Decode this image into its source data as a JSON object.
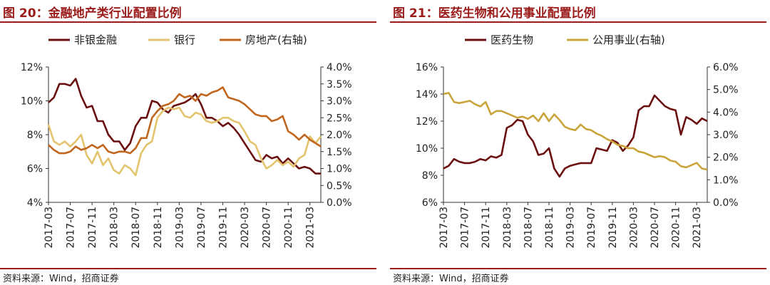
{
  "chart_data": [
    {
      "type": "line",
      "title": "图 20：金融地产类行业配置比例",
      "source": "资料来源：Wind，招商证券",
      "x_tick_labels": [
        "2017-03",
        "2017-07",
        "2017-11",
        "2018-03",
        "2018-07",
        "2018-11",
        "2019-03",
        "2019-07",
        "2019-11",
        "2020-03",
        "2020-07",
        "2020-11",
        "2021-03"
      ],
      "x_range": [
        0,
        50
      ],
      "y_left": {
        "ticks": [
          "4%",
          "6%",
          "8%",
          "10%",
          "12%"
        ],
        "range": [
          4,
          12
        ]
      },
      "y_right": {
        "ticks": [
          "0.0%",
          "0.5%",
          "1.0%",
          "1.5%",
          "2.0%",
          "2.5%",
          "3.0%",
          "3.5%",
          "4.0%"
        ],
        "range": [
          0,
          4
        ]
      },
      "legend_position": "top",
      "series": [
        {
          "name": "非银金融",
          "axis": "left",
          "color": "#6b1010",
          "values": [
            9.9,
            10.2,
            11.0,
            11.0,
            10.9,
            11.3,
            10.3,
            9.6,
            9.7,
            8.8,
            8.8,
            8.0,
            7.6,
            7.6,
            7.1,
            7.5,
            8.5,
            9.0,
            9.0,
            10.0,
            9.9,
            9.5,
            9.3,
            9.7,
            9.8,
            9.9,
            10.1,
            10.4,
            9.8,
            9.0,
            9.0,
            8.8,
            8.5,
            8.7,
            8.4,
            8.0,
            7.5,
            7.0,
            6.5,
            6.4,
            6.8,
            6.6,
            6.7,
            6.3,
            6.6,
            6.3,
            6.0,
            6.1,
            6.0,
            5.7,
            5.7
          ]
        },
        {
          "name": "银行",
          "axis": "left",
          "color": "#e3c46c",
          "values": [
            8.6,
            7.6,
            7.4,
            7.6,
            7.3,
            7.6,
            8.0,
            6.8,
            6.3,
            7.0,
            6.2,
            6.6,
            5.9,
            5.7,
            6.2,
            6.0,
            5.6,
            6.9,
            7.4,
            7.6,
            9.0,
            9.4,
            9.6,
            9.5,
            9.6,
            9.1,
            9.0,
            9.3,
            9.2,
            8.8,
            8.7,
            8.8,
            9.0,
            9.0,
            8.8,
            8.7,
            8.2,
            7.6,
            7.4,
            6.6,
            6.0,
            6.2,
            6.5,
            6.2,
            6.4,
            6.1,
            6.6,
            6.8,
            7.9,
            7.5,
            7.9
          ]
        },
        {
          "name": "房地产(右轴)",
          "axis": "right",
          "color": "#c0661e",
          "values": [
            1.7,
            1.55,
            1.45,
            1.45,
            1.5,
            1.65,
            1.55,
            1.6,
            1.7,
            1.6,
            1.7,
            1.5,
            1.45,
            1.5,
            1.5,
            1.45,
            1.6,
            1.9,
            1.9,
            2.5,
            2.7,
            2.85,
            2.9,
            3.0,
            3.2,
            3.1,
            3.15,
            3.0,
            3.2,
            3.15,
            3.25,
            3.3,
            3.4,
            3.1,
            3.05,
            3.0,
            2.9,
            2.75,
            2.6,
            2.55,
            2.55,
            2.4,
            2.45,
            2.55,
            2.1,
            2.0,
            1.85,
            2.0,
            1.85,
            1.75,
            1.65
          ]
        }
      ]
    },
    {
      "type": "line",
      "title": "图 21：医药生物和公用事业配置比例",
      "source": "资料来源：Wind，招商证券",
      "x_tick_labels": [
        "2017-03",
        "2017-07",
        "2017-11",
        "2018-03",
        "2018-07",
        "2018-11",
        "2019-03",
        "2019-07",
        "2019-11",
        "2020-03",
        "2020-07",
        "2020-11",
        "2021-03"
      ],
      "x_range": [
        0,
        50
      ],
      "y_left": {
        "ticks": [
          "6%",
          "8%",
          "10%",
          "12%",
          "14%",
          "16%"
        ],
        "range": [
          6,
          16
        ]
      },
      "y_right": {
        "ticks": [
          "0.0%",
          "1.0%",
          "2.0%",
          "3.0%",
          "4.0%",
          "5.0%",
          "6.0%"
        ],
        "range": [
          0,
          6
        ]
      },
      "legend_position": "top",
      "series": [
        {
          "name": "医药生物",
          "axis": "left",
          "color": "#6b1010",
          "values": [
            8.5,
            8.7,
            9.2,
            9.0,
            8.9,
            8.9,
            9.0,
            9.2,
            9.1,
            9.4,
            9.3,
            9.5,
            11.5,
            11.7,
            12.1,
            12.0,
            11.0,
            10.5,
            9.5,
            9.6,
            10.0,
            8.5,
            7.9,
            8.5,
            8.7,
            8.8,
            8.9,
            8.9,
            8.9,
            10.0,
            9.9,
            9.8,
            10.6,
            10.4,
            9.8,
            10.2,
            10.8,
            12.8,
            13.1,
            13.1,
            13.9,
            13.5,
            13.1,
            12.9,
            12.8,
            11.0,
            12.3,
            12.1,
            11.8,
            12.2,
            12.0
          ]
        },
        {
          "name": "公用事业(右轴)",
          "axis": "right",
          "color": "#c9a43a",
          "values": [
            4.8,
            4.85,
            4.45,
            4.4,
            4.45,
            4.5,
            4.35,
            4.25,
            4.45,
            3.9,
            4.05,
            4.05,
            3.95,
            3.85,
            3.75,
            3.8,
            3.7,
            3.85,
            3.6,
            3.95,
            3.6,
            3.9,
            3.65,
            3.35,
            3.25,
            3.2,
            3.45,
            3.25,
            3.2,
            3.05,
            2.95,
            2.8,
            2.7,
            2.55,
            2.5,
            2.4,
            2.4,
            2.25,
            2.2,
            2.1,
            2.0,
            2.05,
            2.0,
            1.85,
            1.8,
            1.6,
            1.55,
            1.65,
            1.75,
            1.5,
            1.45
          ]
        }
      ]
    }
  ]
}
